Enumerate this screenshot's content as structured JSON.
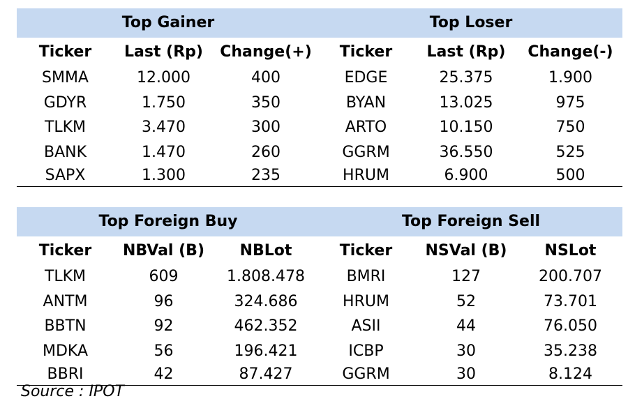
{
  "top_tables": {
    "gainer_title": "Top Gainer",
    "loser_title": "Top Loser",
    "headers": [
      "Ticker",
      "Last (Rp)",
      "Change(+)",
      "Ticker",
      "Last (Rp)",
      "Change(-)"
    ],
    "rows": [
      [
        "SMMA",
        "12.000",
        "400",
        "EDGE",
        "25.375",
        "1.900"
      ],
      [
        "GDYR",
        "1.750",
        "350",
        "BYAN",
        "13.025",
        "975"
      ],
      [
        "TLKM",
        "3.470",
        "300",
        "ARTO",
        "10.150",
        "750"
      ],
      [
        "BANK",
        "1.470",
        "260",
        "GGRM",
        "36.550",
        "525"
      ],
      [
        "SAPX",
        "1.300",
        "235",
        "HRUM",
        "6.900",
        "500"
      ]
    ]
  },
  "foreign_tables": {
    "buy_title": "Top Foreign Buy",
    "sell_title": "Top Foreign Sell",
    "headers": [
      "Ticker",
      "NBVal (B)",
      "NBLot",
      "Ticker",
      "NSVal (B)",
      "NSLot"
    ],
    "rows": [
      [
        "TLKM",
        "609",
        "1.808.478",
        "BMRI",
        "127",
        "200.707"
      ],
      [
        "ANTM",
        "96",
        "324.686",
        "HRUM",
        "52",
        "73.701"
      ],
      [
        "BBTN",
        "92",
        "462.352",
        "ASII",
        "44",
        "76.050"
      ],
      [
        "MDKA",
        "56",
        "196.421",
        "ICBP",
        "30",
        "35.238"
      ],
      [
        "BBRI",
        "42",
        "87.427",
        "GGRM",
        "30",
        "8.124"
      ]
    ]
  },
  "source": "Source : IPOT"
}
